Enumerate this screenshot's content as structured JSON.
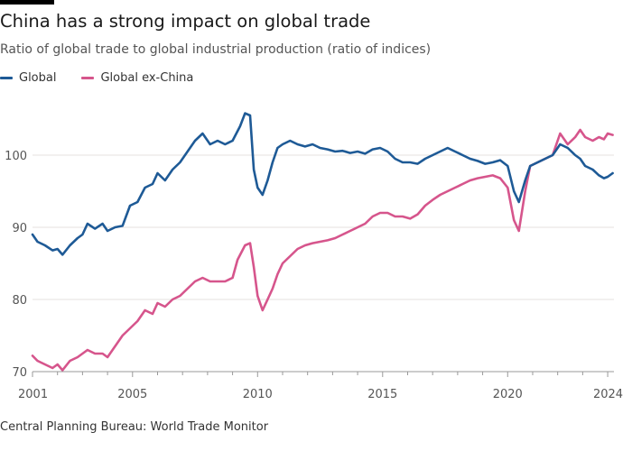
{
  "title": "China has a strong impact on global trade",
  "subtitle": "Ratio of global trade to global industrial production (ratio of indices)",
  "source": "Central Planning Bureau: World Trade Monitor",
  "chart_data": {
    "type": "line",
    "x_axis": {
      "range": [
        2001,
        2024.25
      ],
      "ticks": [
        2001,
        2005,
        2010,
        2015,
        2020,
        2024
      ]
    },
    "y_axis": {
      "range": [
        70,
        110
      ],
      "ticks": [
        70,
        80,
        90,
        100
      ]
    },
    "grid": "horizontal",
    "legend_position": "top-left",
    "series": [
      {
        "name": "Global",
        "color": "#1e5a96",
        "points": [
          [
            2001.0,
            89.0
          ],
          [
            2001.2,
            88.0
          ],
          [
            2001.5,
            87.5
          ],
          [
            2001.8,
            86.8
          ],
          [
            2002.0,
            87.0
          ],
          [
            2002.2,
            86.2
          ],
          [
            2002.5,
            87.5
          ],
          [
            2002.8,
            88.5
          ],
          [
            2003.0,
            89.0
          ],
          [
            2003.2,
            90.5
          ],
          [
            2003.5,
            89.8
          ],
          [
            2003.8,
            90.5
          ],
          [
            2004.0,
            89.5
          ],
          [
            2004.3,
            90.0
          ],
          [
            2004.6,
            90.2
          ],
          [
            2004.9,
            93.0
          ],
          [
            2005.2,
            93.5
          ],
          [
            2005.5,
            95.5
          ],
          [
            2005.8,
            96.0
          ],
          [
            2006.0,
            97.5
          ],
          [
            2006.3,
            96.5
          ],
          [
            2006.6,
            98.0
          ],
          [
            2006.9,
            99.0
          ],
          [
            2007.2,
            100.5
          ],
          [
            2007.5,
            102.0
          ],
          [
            2007.8,
            103.0
          ],
          [
            2008.1,
            101.5
          ],
          [
            2008.4,
            102.0
          ],
          [
            2008.7,
            101.5
          ],
          [
            2009.0,
            102.0
          ],
          [
            2009.3,
            104.0
          ],
          [
            2009.5,
            105.8
          ],
          [
            2009.7,
            105.5
          ],
          [
            2009.85,
            98.0
          ],
          [
            2010.0,
            95.5
          ],
          [
            2010.2,
            94.5
          ],
          [
            2010.4,
            96.5
          ],
          [
            2010.6,
            99.0
          ],
          [
            2010.8,
            101.0
          ],
          [
            2011.0,
            101.5
          ],
          [
            2011.3,
            102.0
          ],
          [
            2011.6,
            101.5
          ],
          [
            2011.9,
            101.2
          ],
          [
            2012.2,
            101.5
          ],
          [
            2012.5,
            101.0
          ],
          [
            2012.8,
            100.8
          ],
          [
            2013.1,
            100.5
          ],
          [
            2013.4,
            100.6
          ],
          [
            2013.7,
            100.3
          ],
          [
            2014.0,
            100.5
          ],
          [
            2014.3,
            100.2
          ],
          [
            2014.6,
            100.8
          ],
          [
            2014.9,
            101.0
          ],
          [
            2015.2,
            100.5
          ],
          [
            2015.5,
            99.5
          ],
          [
            2015.8,
            99.0
          ],
          [
            2016.1,
            99.0
          ],
          [
            2016.4,
            98.8
          ],
          [
            2016.7,
            99.5
          ],
          [
            2017.0,
            100.0
          ],
          [
            2017.3,
            100.5
          ],
          [
            2017.6,
            101.0
          ],
          [
            2017.9,
            100.5
          ],
          [
            2018.2,
            100.0
          ],
          [
            2018.5,
            99.5
          ],
          [
            2018.8,
            99.2
          ],
          [
            2019.1,
            98.8
          ],
          [
            2019.4,
            99.0
          ],
          [
            2019.7,
            99.3
          ],
          [
            2020.0,
            98.5
          ],
          [
            2020.25,
            95.0
          ],
          [
            2020.45,
            93.5
          ],
          [
            2020.7,
            96.5
          ],
          [
            2020.9,
            98.5
          ],
          [
            2021.2,
            99.0
          ],
          [
            2021.5,
            99.5
          ],
          [
            2021.8,
            100.0
          ],
          [
            2022.1,
            101.5
          ],
          [
            2022.4,
            101.0
          ],
          [
            2022.7,
            100.0
          ],
          [
            2022.9,
            99.5
          ],
          [
            2023.1,
            98.5
          ],
          [
            2023.4,
            98.0
          ],
          [
            2023.65,
            97.2
          ],
          [
            2023.85,
            96.8
          ],
          [
            2024.0,
            97.0
          ],
          [
            2024.2,
            97.5
          ]
        ]
      },
      {
        "name": "Global ex-China",
        "color": "#d6558c",
        "points": [
          [
            2001.0,
            72.2
          ],
          [
            2001.2,
            71.5
          ],
          [
            2001.5,
            71.0
          ],
          [
            2001.8,
            70.5
          ],
          [
            2002.0,
            71.0
          ],
          [
            2002.2,
            70.2
          ],
          [
            2002.5,
            71.5
          ],
          [
            2002.8,
            72.0
          ],
          [
            2003.0,
            72.5
          ],
          [
            2003.2,
            73.0
          ],
          [
            2003.5,
            72.5
          ],
          [
            2003.8,
            72.5
          ],
          [
            2004.0,
            72.0
          ],
          [
            2004.3,
            73.5
          ],
          [
            2004.6,
            75.0
          ],
          [
            2004.9,
            76.0
          ],
          [
            2005.2,
            77.0
          ],
          [
            2005.5,
            78.5
          ],
          [
            2005.8,
            78.0
          ],
          [
            2006.0,
            79.5
          ],
          [
            2006.3,
            79.0
          ],
          [
            2006.6,
            80.0
          ],
          [
            2006.9,
            80.5
          ],
          [
            2007.2,
            81.5
          ],
          [
            2007.5,
            82.5
          ],
          [
            2007.8,
            83.0
          ],
          [
            2008.1,
            82.5
          ],
          [
            2008.4,
            82.5
          ],
          [
            2008.7,
            82.5
          ],
          [
            2009.0,
            83.0
          ],
          [
            2009.2,
            85.5
          ],
          [
            2009.5,
            87.5
          ],
          [
            2009.7,
            87.8
          ],
          [
            2009.85,
            84.5
          ],
          [
            2010.0,
            80.5
          ],
          [
            2010.2,
            78.5
          ],
          [
            2010.4,
            80.0
          ],
          [
            2010.6,
            81.5
          ],
          [
            2010.8,
            83.5
          ],
          [
            2011.0,
            85.0
          ],
          [
            2011.3,
            86.0
          ],
          [
            2011.6,
            87.0
          ],
          [
            2011.9,
            87.5
          ],
          [
            2012.2,
            87.8
          ],
          [
            2012.5,
            88.0
          ],
          [
            2012.8,
            88.2
          ],
          [
            2013.1,
            88.5
          ],
          [
            2013.4,
            89.0
          ],
          [
            2013.7,
            89.5
          ],
          [
            2014.0,
            90.0
          ],
          [
            2014.3,
            90.5
          ],
          [
            2014.6,
            91.5
          ],
          [
            2014.9,
            92.0
          ],
          [
            2015.2,
            92.0
          ],
          [
            2015.5,
            91.5
          ],
          [
            2015.8,
            91.5
          ],
          [
            2016.1,
            91.2
          ],
          [
            2016.4,
            91.8
          ],
          [
            2016.7,
            93.0
          ],
          [
            2017.0,
            93.8
          ],
          [
            2017.3,
            94.5
          ],
          [
            2017.6,
            95.0
          ],
          [
            2017.9,
            95.5
          ],
          [
            2018.2,
            96.0
          ],
          [
            2018.5,
            96.5
          ],
          [
            2018.8,
            96.8
          ],
          [
            2019.1,
            97.0
          ],
          [
            2019.4,
            97.2
          ],
          [
            2019.7,
            96.8
          ],
          [
            2020.0,
            95.5
          ],
          [
            2020.25,
            91.0
          ],
          [
            2020.45,
            89.5
          ],
          [
            2020.7,
            95.0
          ],
          [
            2020.9,
            98.5
          ],
          [
            2021.2,
            99.0
          ],
          [
            2021.5,
            99.5
          ],
          [
            2021.8,
            100.0
          ],
          [
            2022.1,
            103.0
          ],
          [
            2022.4,
            101.5
          ],
          [
            2022.7,
            102.5
          ],
          [
            2022.9,
            103.5
          ],
          [
            2023.1,
            102.5
          ],
          [
            2023.4,
            102.0
          ],
          [
            2023.65,
            102.5
          ],
          [
            2023.85,
            102.2
          ],
          [
            2024.0,
            103.0
          ],
          [
            2024.2,
            102.8
          ]
        ]
      }
    ]
  }
}
